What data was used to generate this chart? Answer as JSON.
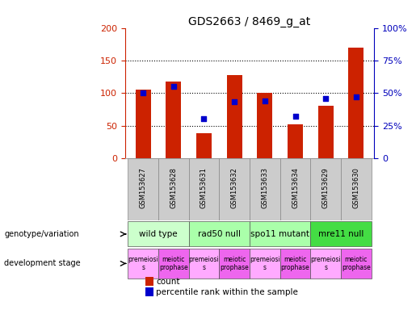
{
  "title": "GDS2663 / 8469_g_at",
  "samples": [
    "GSM153627",
    "GSM153628",
    "GSM153631",
    "GSM153632",
    "GSM153633",
    "GSM153634",
    "GSM153629",
    "GSM153630"
  ],
  "bar_values": [
    105,
    118,
    38,
    127,
    100,
    52,
    80,
    170
  ],
  "percentile_values": [
    50,
    55,
    30,
    43,
    44,
    32,
    46,
    47
  ],
  "bar_color": "#cc2200",
  "pct_color": "#0000cc",
  "left_ylim": [
    0,
    200
  ],
  "right_ylim": [
    0,
    100
  ],
  "left_yticks": [
    0,
    50,
    100,
    150,
    200
  ],
  "right_yticks": [
    0,
    25,
    50,
    75,
    100
  ],
  "right_yticklabels": [
    "0",
    "25%",
    "50%",
    "75%",
    "100%"
  ],
  "geno_groups": [
    {
      "label": "wild type",
      "start": 0,
      "end": 1,
      "color": "#ccffcc"
    },
    {
      "label": "rad50 null",
      "start": 2,
      "end": 3,
      "color": "#aaffaa"
    },
    {
      "label": "spo11 mutant",
      "start": 4,
      "end": 5,
      "color": "#aaffaa"
    },
    {
      "label": "mre11 null",
      "start": 6,
      "end": 7,
      "color": "#44dd44"
    }
  ],
  "dev_labels": [
    "premeiosi\ns",
    "meiotic\nprophase",
    "premeiosi\ns",
    "meiotic\nprophase",
    "premeiosi\ns",
    "meiotic\nprophase",
    "premeiosi\ns",
    "meiotic\nprophase"
  ],
  "dev_colors": [
    "#ffaaff",
    "#ee66ee",
    "#ffaaff",
    "#ee66ee",
    "#ffaaff",
    "#ee66ee",
    "#ffaaff",
    "#ee66ee"
  ],
  "bg_color": "#ffffff",
  "left_axis_color": "#cc2200",
  "right_axis_color": "#0000bb",
  "sample_bg_color": "#cccccc",
  "bar_width": 0.5
}
